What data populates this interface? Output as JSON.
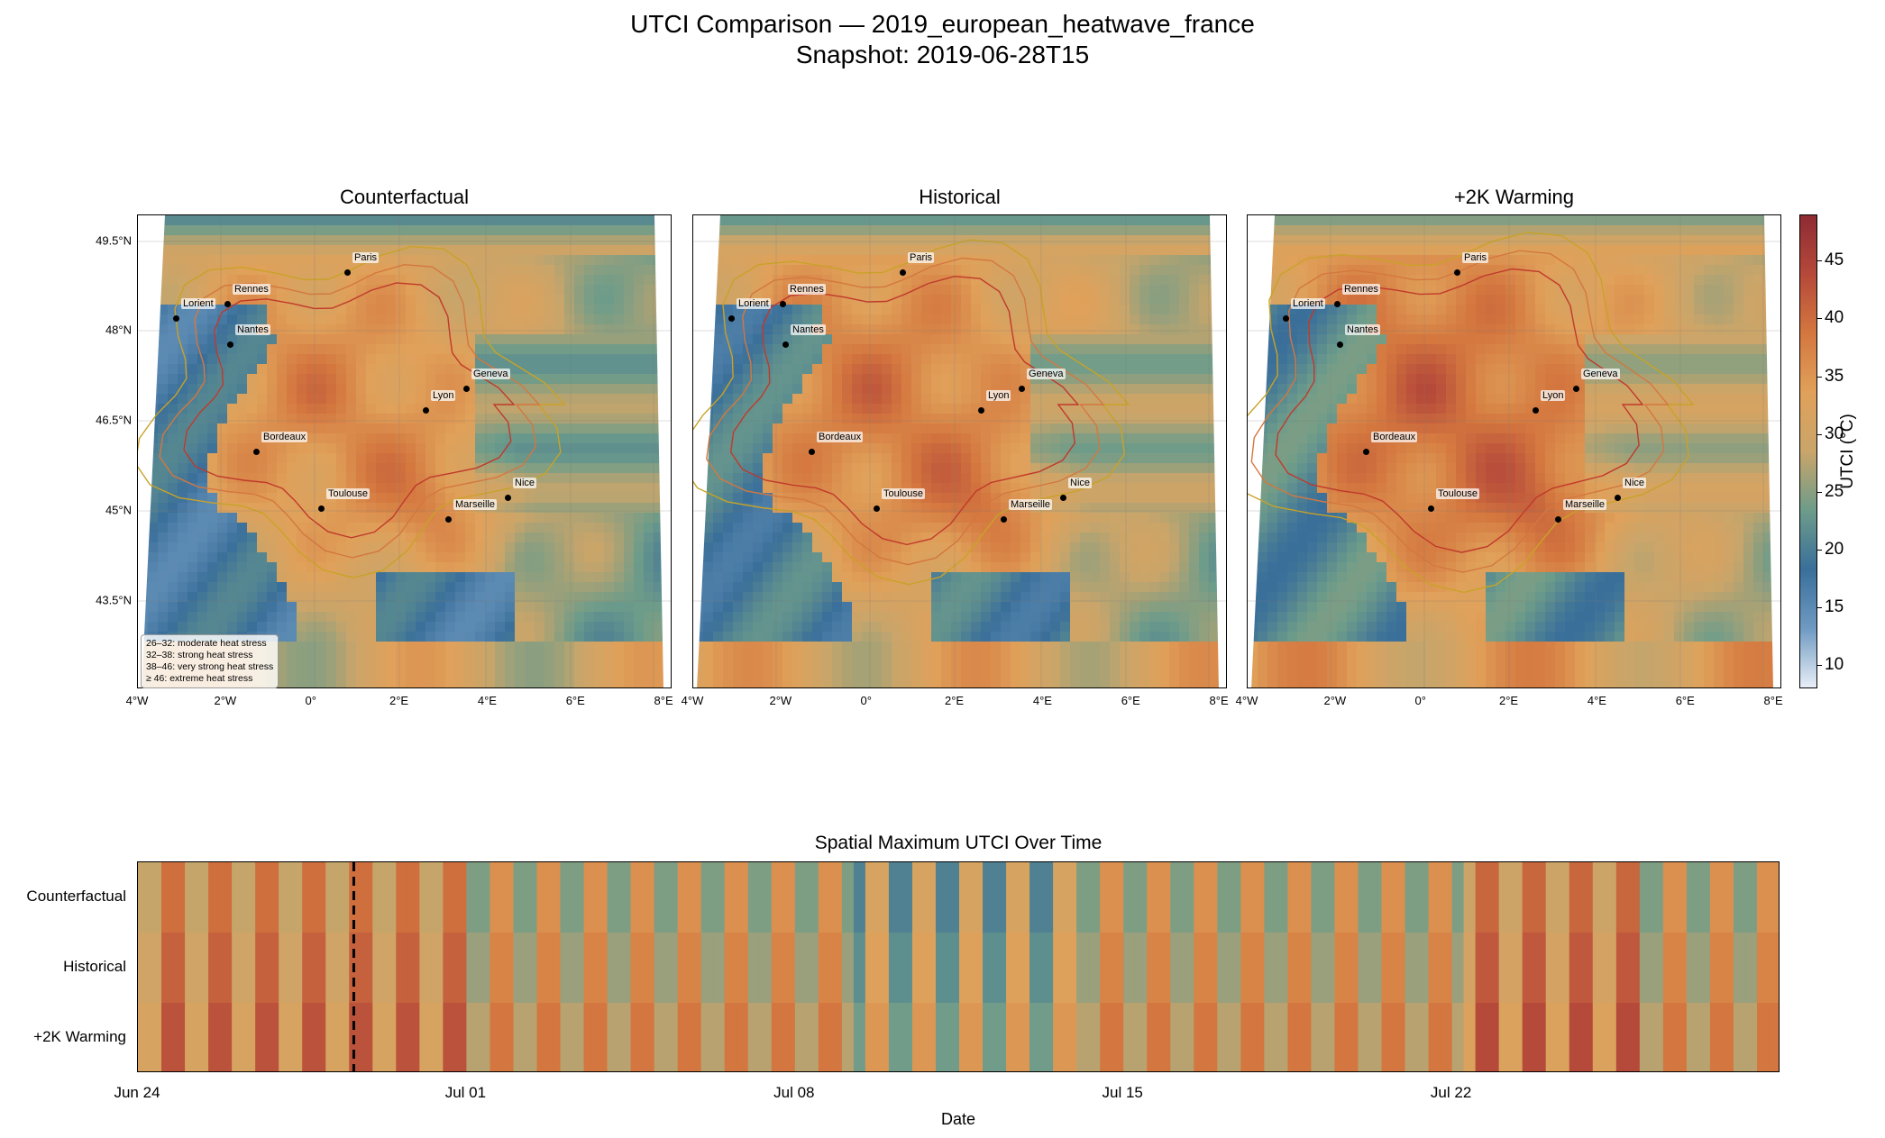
{
  "title": {
    "line1": "UTCI Comparison — 2019_european_heatwave_france",
    "line2": "Snapshot: 2019-06-28T15"
  },
  "panels": [
    {
      "title": "Counterfactual",
      "warm_shift": 0
    },
    {
      "title": "Historical",
      "warm_shift": 1.5
    },
    {
      "title": "+2K Warming",
      "warm_shift": 3.2
    }
  ],
  "map_axes": {
    "x_ticks": [
      "4°W",
      "2°W",
      "0°",
      "2°E",
      "4°E",
      "6°E",
      "8°E"
    ],
    "y_ticks": [
      "49.5°N",
      "48°N",
      "46.5°N",
      "45°N",
      "43.5°N"
    ]
  },
  "cities": [
    {
      "name": "Paris"
    },
    {
      "name": "Rennes"
    },
    {
      "name": "Lorient"
    },
    {
      "name": "Nantes"
    },
    {
      "name": "Geneva"
    },
    {
      "name": "Lyon"
    },
    {
      "name": "Bordeaux"
    },
    {
      "name": "Toulouse"
    },
    {
      "name": "Nice"
    },
    {
      "name": "Marseille"
    }
  ],
  "legend_lines": [
    "26–32: moderate heat stress",
    "32–38: strong heat stress",
    "38–46: very strong heat stress",
    "≥ 46: extreme heat stress"
  ],
  "colorbar": {
    "label": "UTCI (°C)",
    "ticks": [
      "10",
      "15",
      "20",
      "25",
      "30",
      "35",
      "40",
      "45"
    ],
    "min": 8,
    "max": 49,
    "colors": [
      "#e8eef7",
      "#6f9ac2",
      "#3a6f9a",
      "#6d9c8a",
      "#c9a56a",
      "#e0a15a",
      "#d4773f",
      "#b5493a",
      "#8e2a33"
    ]
  },
  "timeseries": {
    "title": "Spatial Maximum UTCI Over Time",
    "rows": [
      "Counterfactual",
      "Historical",
      "+2K Warming"
    ],
    "x_labels": [
      "Jun 24",
      "Jul 01",
      "Jul 08",
      "Jul 15",
      "Jul 22"
    ],
    "xlabel": "Date",
    "snapshot_day_index": 4.6,
    "days": 35
  }
}
